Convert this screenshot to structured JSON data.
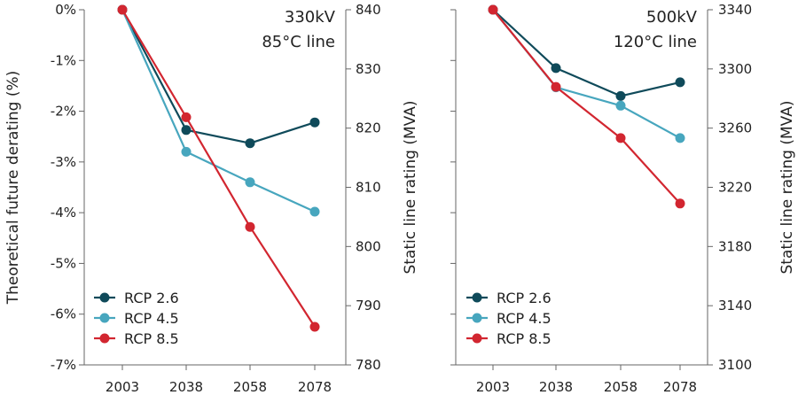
{
  "chart_data": [
    {
      "type": "line",
      "title": [
        "330kV",
        "85°C line"
      ],
      "categories": [
        "2003",
        "2038",
        "2058",
        "2078"
      ],
      "left_axis": {
        "label": "Theoretical future derating (%)",
        "ticks": [
          "0%",
          "-1%",
          "-2%",
          "-3%",
          "-4%",
          "-5%",
          "-6%",
          "-7%"
        ],
        "range": [
          -7,
          0
        ]
      },
      "right_axis": {
        "label": "Static line rating (MVA)",
        "ticks": [
          "840",
          "830",
          "820",
          "810",
          "800",
          "790",
          "780"
        ],
        "range": [
          780,
          840
        ]
      },
      "series": [
        {
          "name": "RCP 2.6",
          "color": "#0f4a5a",
          "values": [
            0,
            -2.37,
            -2.63,
            -2.22
          ]
        },
        {
          "name": "RCP 4.5",
          "color": "#47a6be",
          "values": [
            0,
            -2.8,
            -3.4,
            -3.98
          ]
        },
        {
          "name": "RCP 8.5",
          "color": "#d22630",
          "values": [
            0,
            -2.12,
            -4.28,
            -6.25
          ]
        }
      ],
      "legend": "bottom-left"
    },
    {
      "type": "line",
      "title": [
        "500kV",
        "120°C line"
      ],
      "categories": [
        "2003",
        "2038",
        "2058",
        "2078"
      ],
      "left_axis": {
        "label": "",
        "ticks": [
          "",
          "",
          "",
          "",
          "",
          "",
          "",
          ""
        ],
        "range": [
          -7,
          0
        ]
      },
      "right_axis": {
        "label": "Static line rating (MVA)",
        "ticks": [
          "3340",
          "3300",
          "3260",
          "3220",
          "3180",
          "3140",
          "3100"
        ],
        "range": [
          3100,
          3340
        ]
      },
      "series": [
        {
          "name": "RCP 2.6",
          "color": "#0f4a5a",
          "values": [
            0,
            -1.15,
            -1.7,
            -1.43
          ]
        },
        {
          "name": "RCP 4.5",
          "color": "#47a6be",
          "values": [
            0,
            -1.53,
            -1.89,
            -2.53
          ]
        },
        {
          "name": "RCP 8.5",
          "color": "#d22630",
          "values": [
            0,
            -1.52,
            -2.53,
            -3.82
          ]
        }
      ],
      "legend": "bottom-left"
    }
  ]
}
